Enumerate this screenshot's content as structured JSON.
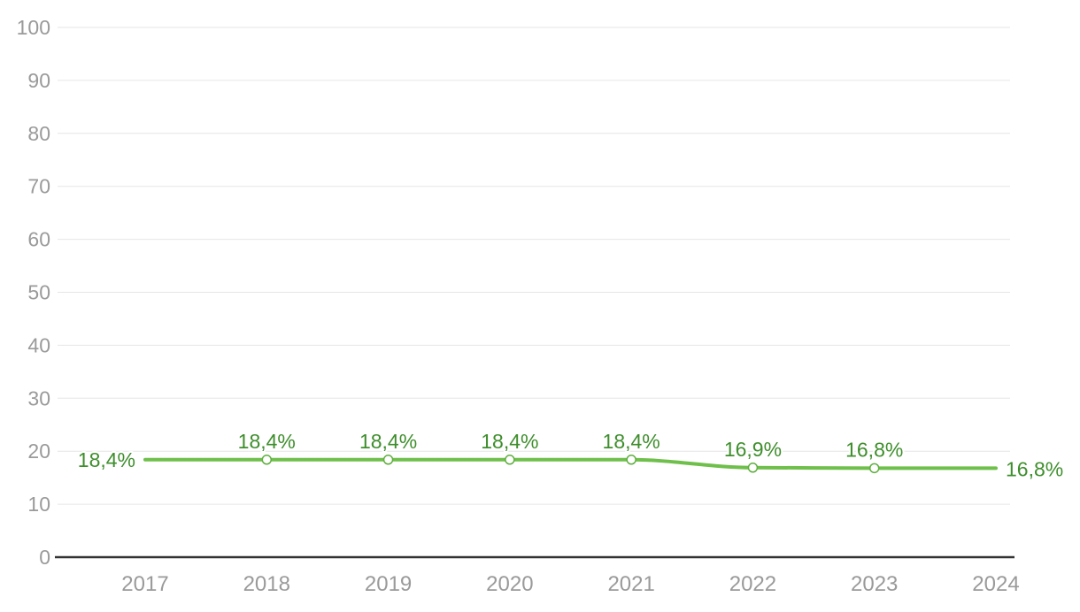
{
  "chart_data": {
    "type": "line",
    "title": "",
    "xlabel": "",
    "ylabel": "",
    "categories": [
      "2017",
      "2018",
      "2019",
      "2020",
      "2021",
      "2022",
      "2023",
      "2024"
    ],
    "values": [
      18.4,
      18.4,
      18.4,
      18.4,
      18.4,
      16.9,
      16.8,
      16.8
    ],
    "value_labels": [
      "18,4%",
      "18,4%",
      "18,4%",
      "18,4%",
      "18,4%",
      "16,9%",
      "16,8%",
      "16,8%"
    ],
    "ylim": [
      0,
      100
    ],
    "yticks": [
      0,
      10,
      20,
      30,
      40,
      50,
      60,
      70,
      80,
      90,
      100
    ],
    "ytick_labels": [
      "0",
      "10",
      "20",
      "30",
      "40",
      "50",
      "60",
      "70",
      "80",
      "90",
      "100"
    ],
    "grid": true,
    "legend": false,
    "markers": "open-circle-on-interior-points",
    "label_placement": "first-left, interior-above, last-right",
    "colors": {
      "line": "#6fbf4b",
      "marker_fill": "#ffffff",
      "marker_stroke": "#5fae3f",
      "data_label": "#3e8e2c",
      "gridline": "#e6e6e6",
      "tick_label": "#9a9a9a",
      "axis_line": "#333333",
      "background": "#ffffff"
    }
  }
}
